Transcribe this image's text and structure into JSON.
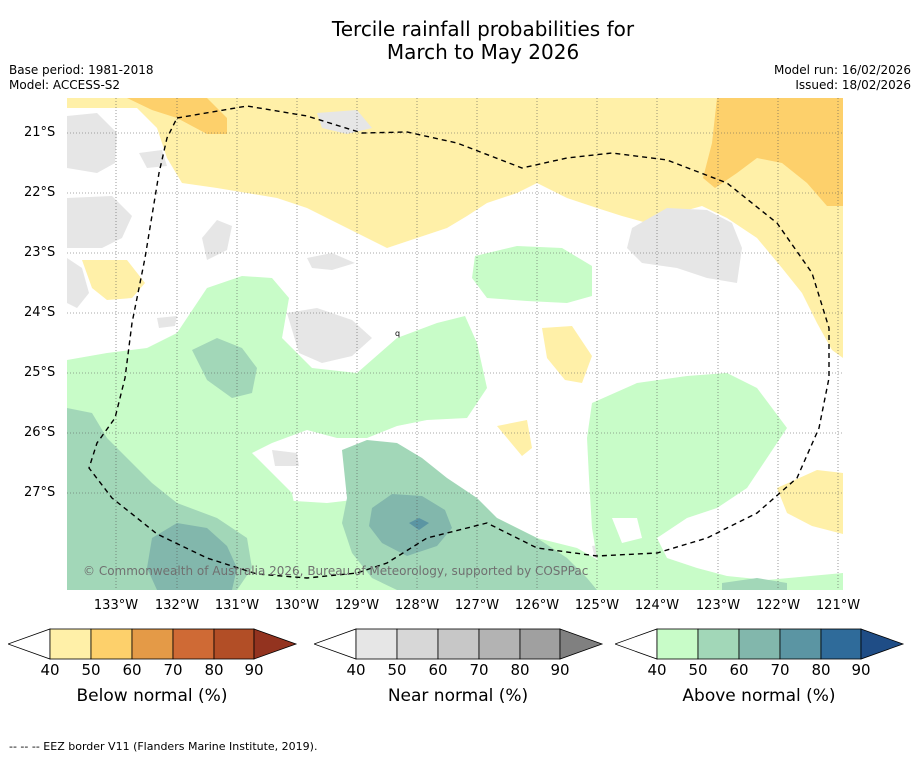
{
  "header": {
    "title_line1": "Tercile rainfall probabilities for",
    "title_line2": "March to May 2026",
    "base_period": "Base period: 1981-2018",
    "model": "Model: ACCESS-S2",
    "model_run": "Model run: 16/02/2026",
    "issued": "Issued: 18/02/2026"
  },
  "map": {
    "lat_labels": [
      "21°S",
      "22°S",
      "23°S",
      "24°S",
      "25°S",
      "26°S",
      "27°S"
    ],
    "lon_labels": [
      "133°W",
      "132°W",
      "131°W",
      "130°W",
      "129°W",
      "128°W",
      "127°W",
      "126°W",
      "125°W",
      "124°W",
      "123°W",
      "122°W",
      "121°W"
    ],
    "copyright": "© Commonwealth of Australia 2026, Bureau of Meteorology, supported by COSPPac",
    "stray_label": "q"
  },
  "colorbars": {
    "ticks": [
      "40",
      "50",
      "60",
      "70",
      "80",
      "90"
    ],
    "below": {
      "title": "Below normal (%)",
      "colors": [
        "#fff0a8",
        "#fdd06b",
        "#e49a47",
        "#cf6a35",
        "#b24e26",
        "#93331f"
      ]
    },
    "near": {
      "title": "Near normal (%)",
      "colors": [
        "#e6e6e6",
        "#d7d7d7",
        "#c7c7c7",
        "#b3b3b3",
        "#a0a0a0",
        "#808080"
      ]
    },
    "above": {
      "title": "Above normal (%)",
      "colors": [
        "#c8fcc8",
        "#a2d7b8",
        "#82b7ac",
        "#5b95a3",
        "#2f6b9a",
        "#1f4d86"
      ]
    }
  },
  "footer": {
    "legend_text": "-- -- -- EEZ border V11 (Flanders Marine Institute, 2019)."
  }
}
